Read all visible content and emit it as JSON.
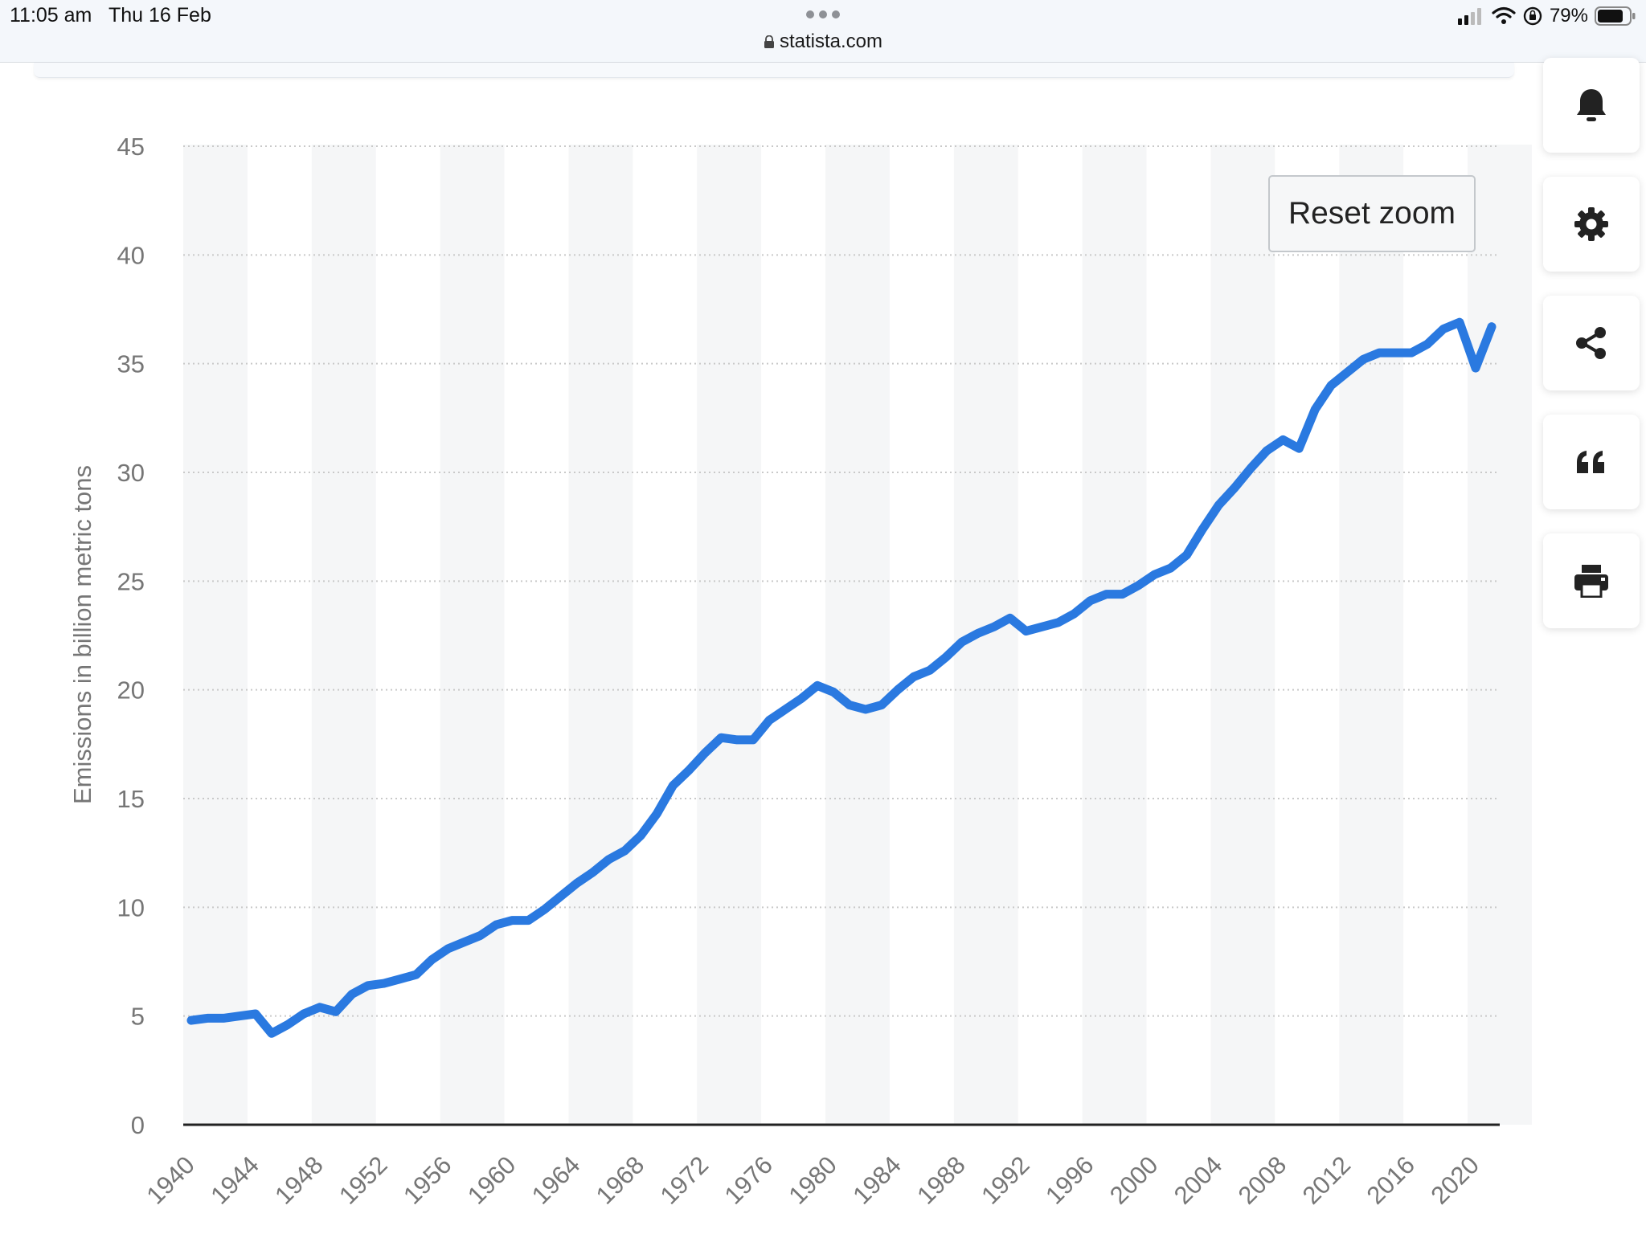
{
  "status_bar": {
    "time": "11:05 am",
    "date": "Thu 16 Feb",
    "battery": "79%",
    "url": "statista.com"
  },
  "toolbar": {
    "reset_zoom_label": "Reset zoom",
    "side_icons": [
      "bell-icon",
      "gear-icon",
      "share-icon",
      "quote-icon",
      "print-icon"
    ]
  },
  "colors": {
    "series": "#2a79e0",
    "band": "#f5f6f7",
    "grid": "#c9c9c9",
    "axis_text": "#767676"
  },
  "chart_data": {
    "type": "line",
    "title": "",
    "xlabel": "",
    "ylabel": "Emissions in billion metric tons",
    "xlim": [
      1940,
      2021
    ],
    "ylim": [
      0,
      45
    ],
    "yticks": [
      0,
      5,
      10,
      15,
      20,
      25,
      30,
      35,
      40,
      45
    ],
    "xticks": [
      1940,
      1944,
      1948,
      1952,
      1956,
      1960,
      1964,
      1968,
      1972,
      1976,
      1980,
      1984,
      1988,
      1992,
      1996,
      2000,
      2004,
      2008,
      2012,
      2016,
      2020
    ],
    "grid": true,
    "legend": "none",
    "series": [
      {
        "x": [
          1940,
          1941,
          1942,
          1943,
          1944,
          1945,
          1946,
          1947,
          1948,
          1949,
          1950,
          1951,
          1952,
          1953,
          1954,
          1955,
          1956,
          1957,
          1958,
          1959,
          1960,
          1961,
          1962,
          1963,
          1964,
          1965,
          1966,
          1967,
          1968,
          1969,
          1970,
          1971,
          1972,
          1973,
          1974,
          1975,
          1976,
          1977,
          1978,
          1979,
          1980,
          1981,
          1982,
          1983,
          1984,
          1985,
          1986,
          1987,
          1988,
          1989,
          1990,
          1991,
          1992,
          1993,
          1994,
          1995,
          1996,
          1997,
          1998,
          1999,
          2000,
          2001,
          2002,
          2003,
          2004,
          2005,
          2006,
          2007,
          2008,
          2009,
          2010,
          2011,
          2012,
          2013,
          2014,
          2015,
          2016,
          2017,
          2018,
          2019,
          2020,
          2021
        ],
        "y": [
          4.8,
          4.9,
          4.9,
          5.0,
          5.1,
          4.2,
          4.6,
          5.1,
          5.4,
          5.2,
          6.0,
          6.4,
          6.5,
          6.7,
          6.9,
          7.6,
          8.1,
          8.4,
          8.7,
          9.2,
          9.4,
          9.4,
          9.9,
          10.5,
          11.1,
          11.6,
          12.2,
          12.6,
          13.3,
          14.3,
          15.6,
          16.3,
          17.1,
          17.8,
          17.7,
          17.7,
          18.6,
          19.1,
          19.6,
          20.2,
          19.9,
          19.3,
          19.1,
          19.3,
          20.0,
          20.6,
          20.9,
          21.5,
          22.2,
          22.6,
          22.9,
          23.3,
          22.7,
          22.9,
          23.1,
          23.5,
          24.1,
          24.4,
          24.4,
          24.8,
          25.3,
          25.6,
          26.2,
          27.4,
          28.5,
          29.3,
          30.2,
          31.0,
          31.5,
          31.1,
          32.9,
          34.0,
          34.6,
          35.2,
          35.5,
          35.5,
          35.5,
          35.9,
          36.6,
          36.9,
          34.8,
          36.7
        ]
      }
    ]
  }
}
